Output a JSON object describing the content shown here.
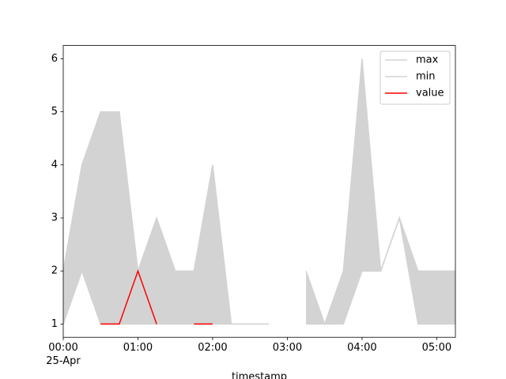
{
  "chart_data": {
    "type": "line",
    "x": [
      "00:00",
      "00:15",
      "00:30",
      "00:45",
      "01:00",
      "01:15",
      "01:30",
      "01:45",
      "02:00",
      "02:15",
      "02:30",
      "02:45",
      "03:00",
      "03:15",
      "03:30",
      "03:45",
      "04:00",
      "04:15",
      "04:30",
      "04:45",
      "05:00",
      "05:15"
    ],
    "series": [
      {
        "name": "max",
        "color": "#d3d3d3",
        "values": [
          2,
          4,
          5,
          5,
          2,
          3,
          2,
          2,
          4,
          1,
          1,
          1,
          null,
          2,
          1,
          2,
          6,
          2,
          3,
          2,
          2,
          2
        ]
      },
      {
        "name": "min",
        "color": "#d3d3d3",
        "values": [
          1,
          2,
          1,
          1,
          1,
          1,
          1,
          1,
          1,
          1,
          1,
          1,
          null,
          1,
          1,
          1,
          2,
          2,
          3,
          1,
          1,
          1
        ]
      },
      {
        "name": "value",
        "color": "#ff0000",
        "values": [
          null,
          null,
          1,
          1,
          2,
          1,
          null,
          1,
          1,
          null,
          null,
          null,
          null,
          null,
          null,
          null,
          null,
          null,
          null,
          null,
          null,
          null
        ]
      }
    ],
    "fill_between": [
      "max",
      "min"
    ],
    "fill_color": "#d3d3d3",
    "xlim": [
      "00:00",
      "05:15"
    ],
    "xticks": [
      "00:00",
      "01:00",
      "02:00",
      "03:00",
      "04:00",
      "05:00"
    ],
    "x_date_label": "25-Apr",
    "xlabel": "timestamp",
    "ylim": [
      0.75,
      6.25
    ],
    "yticks": [
      1,
      2,
      3,
      4,
      5,
      6
    ],
    "legend": "upper right"
  }
}
